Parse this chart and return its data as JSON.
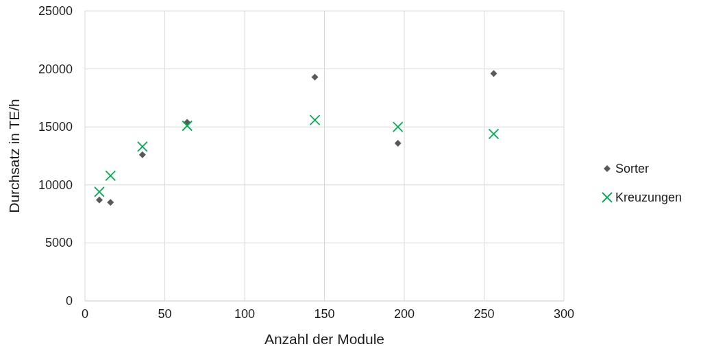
{
  "chart_data": {
    "type": "scatter",
    "xlabel": "Anzahl der Module",
    "ylabel": "Durchsatz in TE/h",
    "xlim": [
      0,
      300
    ],
    "xticks": [
      0,
      50,
      100,
      150,
      200,
      250,
      300
    ],
    "ylim": [
      0,
      25000
    ],
    "yticks": [
      0,
      5000,
      10000,
      15000,
      20000,
      25000
    ],
    "grid": true,
    "legend": "right",
    "series": [
      {
        "name": "Sorter",
        "color": "#595959",
        "marker": "diamond",
        "x": [
          9,
          16,
          36,
          64,
          144,
          196,
          256
        ],
        "values": [
          8700,
          8500,
          12600,
          15400,
          19300,
          13600,
          19600
        ]
      },
      {
        "name": "Kreuzungen",
        "color": "#00b050",
        "marker": "cross",
        "x": [
          9,
          16,
          36,
          64,
          144,
          196,
          256
        ],
        "values": [
          9400,
          10800,
          13300,
          15100,
          15600,
          15000,
          14400
        ]
      }
    ]
  }
}
